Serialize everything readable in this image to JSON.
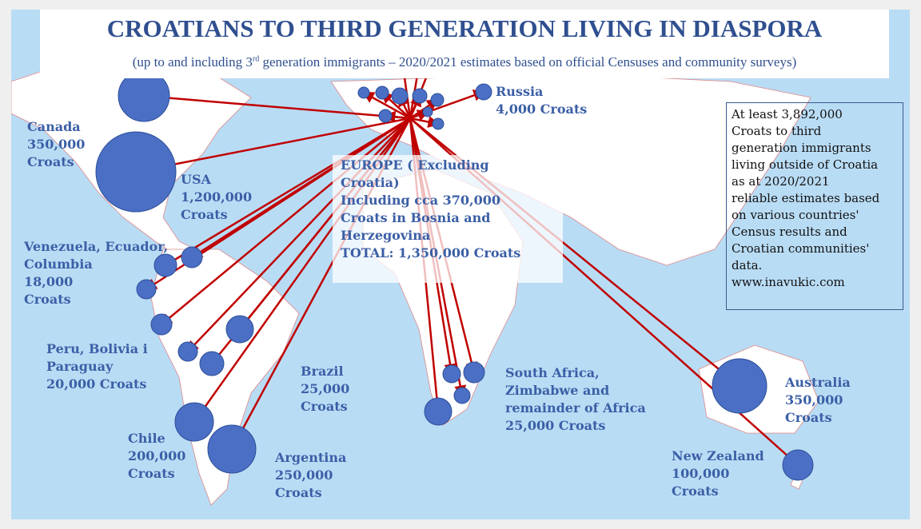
{
  "title": "CROATIANS TO THIRD GENERATION LIVING IN DIASPORA",
  "subtitle_pre": "(up to and including 3",
  "subtitle_sup": "rd",
  "subtitle_post": " generation immigrants – 2020/2021 estimates based on official Censuses and community surveys)",
  "labels": {
    "canada": "Canada\n350,000\nCroats",
    "usa": "USA\n1,200,000\nCroats",
    "venezuela": "Venezuela, Ecuador,\nColumbia\n18,000\nCroats",
    "peru": "Peru, Bolivia i\nParaguay\n20,000 Croats",
    "brazil": "Brazil\n25,000\nCroats",
    "chile": "Chile\n200,000\nCroats",
    "argentina": "Argentina\n250,000\nCroats",
    "russia": "Russia\n4,000 Croats",
    "europe": "EUROPE ( Excluding\nCroatia)\nIncluding cca 370,000\nCroats in Bosnia and\nHerzegovina\nTOTAL: 1,350,000 Croats",
    "africa": "South Africa,\nZimbabwe and\nremainder of Africa\n25,000 Croats",
    "australia": "Australia\n350,000\nCroats",
    "newzealand": "New Zealand\n100,000\nCroats"
  },
  "total_note": "At least 3,892,000\nCroats to third\ngeneration immigrants\nliving outside of Croatia\nas at 2020/2021\nreliable estimates based\non various countries'\nCensus results and\nCroatian communities'\ndata.\nwww.inavukic.com",
  "colors": {
    "ocean": "#b9dcf5",
    "land": "#ffffff",
    "circle": "#4a6fc4",
    "arrow": "#c00000",
    "text": "#3b5fa6"
  }
}
